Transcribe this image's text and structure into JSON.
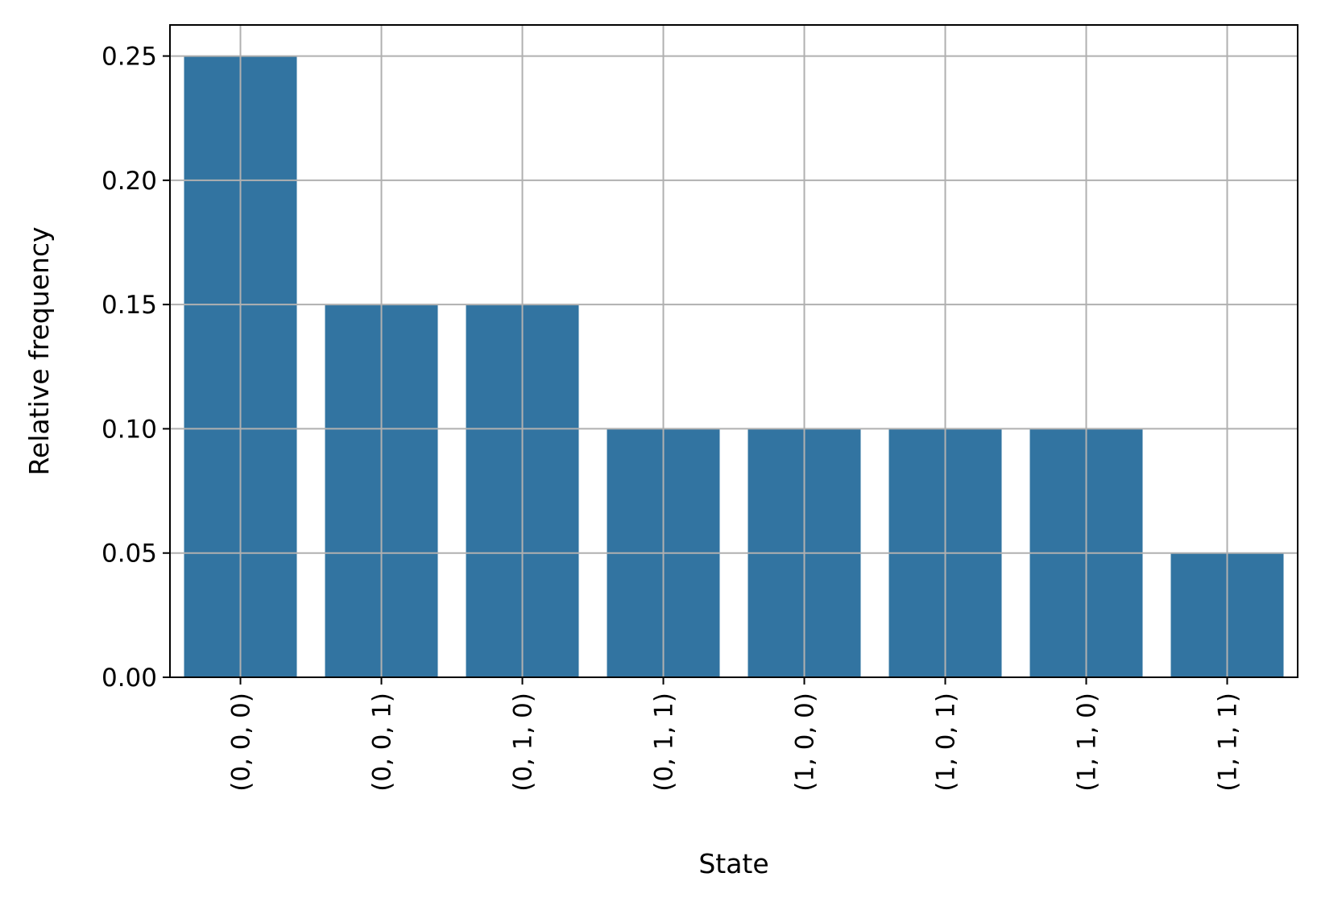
{
  "chart_data": {
    "type": "bar",
    "title": "",
    "xlabel": "State",
    "ylabel": "Relative frequency",
    "categories": [
      "(0, 0, 0)",
      "(0, 0, 1)",
      "(0, 1, 0)",
      "(0, 1, 1)",
      "(1, 0, 0)",
      "(1, 0, 1)",
      "(1, 1, 0)",
      "(1, 1, 1)"
    ],
    "values": [
      0.25,
      0.15,
      0.15,
      0.1,
      0.1,
      0.1,
      0.1,
      0.05
    ],
    "ylim": [
      0,
      0.2625
    ],
    "yticks": [
      "0.00",
      "0.05",
      "0.10",
      "0.15",
      "0.20",
      "0.25"
    ],
    "grid": true,
    "colors": {
      "bar": "#3274a1",
      "grid": "#b0b0b0",
      "axis": "#000000"
    }
  }
}
